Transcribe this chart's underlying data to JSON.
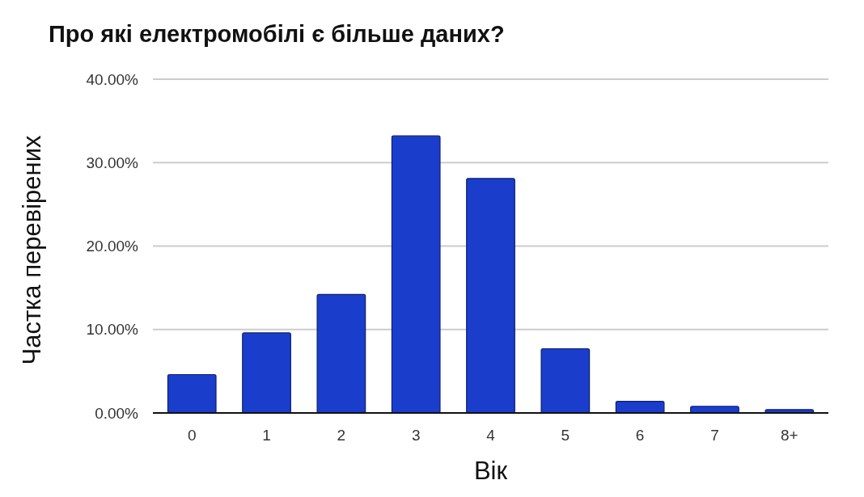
{
  "chart_data": {
    "type": "bar",
    "title": "Про які електромобілі є більше даних?",
    "xlabel": "Вік",
    "ylabel": "Частка перевірених",
    "categories": [
      "0",
      "1",
      "2",
      "3",
      "4",
      "5",
      "6",
      "7",
      "8+"
    ],
    "values": [
      4.6,
      9.6,
      14.2,
      33.2,
      28.1,
      7.7,
      1.4,
      0.8,
      0.4
    ],
    "color": "#1a3dcc",
    "ylim": [
      0,
      40
    ],
    "yticks": [
      {
        "value": 0,
        "label": "0.00%"
      },
      {
        "value": 10,
        "label": "10.00%"
      },
      {
        "value": 20,
        "label": "20.00%"
      },
      {
        "value": 30,
        "label": "30.00%"
      },
      {
        "value": 40,
        "label": "40.00%"
      }
    ],
    "grid": "y"
  }
}
